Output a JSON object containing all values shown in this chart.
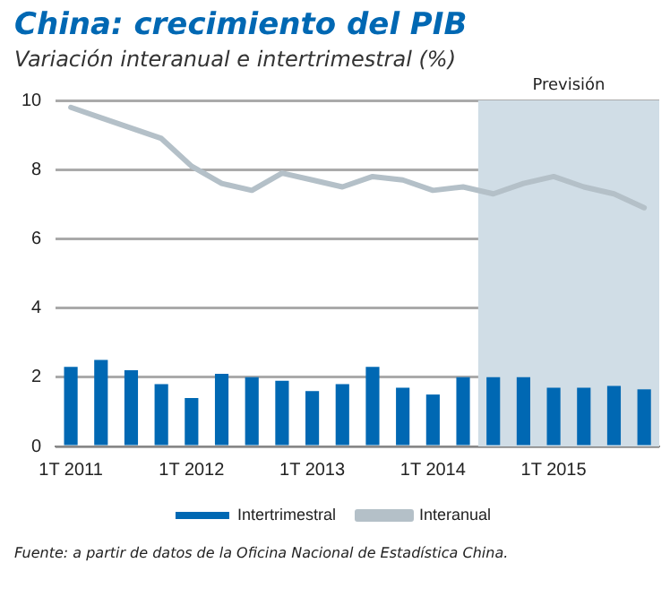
{
  "chart_data": {
    "type": "bar",
    "title": "China: crecimiento del PIB",
    "subtitle": "Variación interanual e intertrimestral (%)",
    "categories": [
      "1T 2011",
      null,
      null,
      null,
      "1T 2012",
      null,
      null,
      null,
      "1T 2013",
      null,
      null,
      null,
      "1T 2014",
      null,
      null,
      null,
      "1T 2015",
      null,
      null,
      null
    ],
    "series": [
      {
        "name": "Intertrimestral",
        "color": "#0068b3",
        "values": [
          2.3,
          2.5,
          2.2,
          1.8,
          1.4,
          2.1,
          2.0,
          1.9,
          1.6,
          1.8,
          2.3,
          1.7,
          1.5,
          2.0,
          2.0,
          2.0,
          1.7,
          1.7,
          1.75,
          1.65
        ]
      },
      {
        "name": "Interanual",
        "type": "line",
        "color": "#b4c0c8",
        "values": [
          9.8,
          9.5,
          9.2,
          8.9,
          8.1,
          7.6,
          7.4,
          7.9,
          7.7,
          7.5,
          7.8,
          7.7,
          7.4,
          7.5,
          7.3,
          7.6,
          7.8,
          7.5,
          7.3,
          6.9
        ]
      }
    ],
    "ylim": [
      0,
      10
    ],
    "yticks": [
      0,
      2,
      4,
      6,
      8,
      10
    ],
    "grid": "y",
    "legend": "bottom",
    "marker": "none",
    "annotations": [
      "Previsión",
      "Fuente: a partir de datos de la Oficina Nacional de Estadística China."
    ]
  }
}
